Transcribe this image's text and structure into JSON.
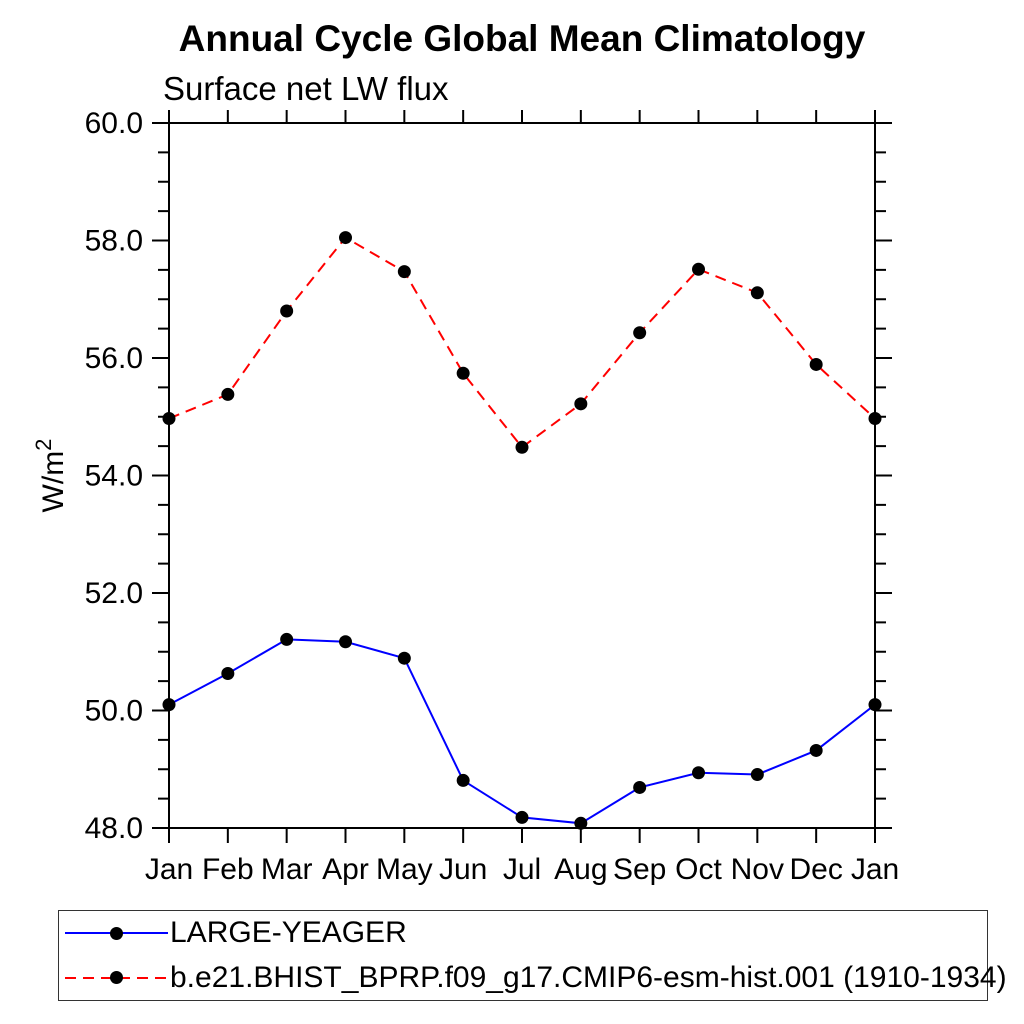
{
  "page_title": "Annual Cycle Global Mean Climatology",
  "chart_data": {
    "type": "line",
    "title": "Annual Cycle Global Mean Climatology",
    "subtitle": "Surface net LW flux",
    "ylabel": "W/m²",
    "xlabel": "",
    "categories": [
      "Jan",
      "Feb",
      "Mar",
      "Apr",
      "May",
      "Jun",
      "Jul",
      "Aug",
      "Sep",
      "Oct",
      "Nov",
      "Dec",
      "Jan"
    ],
    "ylim": [
      48.0,
      60.0
    ],
    "ytick_major_step": 2.0,
    "ytick_minor_step": 0.5,
    "ytick_labels": [
      "48.0",
      "50.0",
      "52.0",
      "54.0",
      "56.0",
      "58.0",
      "60.0"
    ],
    "grid": false,
    "tick_direction": "out",
    "legend_position": "below-left-box",
    "axis_color": "#000000",
    "marker": {
      "shape": "filled-circle",
      "color": "#000000",
      "radius_px": 6.5
    },
    "series": [
      {
        "name": "LARGE-YEAGER",
        "color": "#0000ff",
        "line_style": "solid",
        "values": [
          50.1,
          50.63,
          51.21,
          51.17,
          50.89,
          48.81,
          48.18,
          48.08,
          48.69,
          48.94,
          48.91,
          49.32,
          50.1
        ]
      },
      {
        "name": "b.e21.BHIST_BPRP.f09_g17.CMIP6-esm-hist.001 (1910-1934)",
        "color": "#ff0000",
        "line_style": "dashed",
        "values": [
          54.97,
          55.38,
          56.8,
          58.05,
          57.47,
          55.74,
          54.48,
          55.22,
          56.43,
          57.51,
          57.11,
          55.89,
          54.97
        ]
      }
    ]
  }
}
